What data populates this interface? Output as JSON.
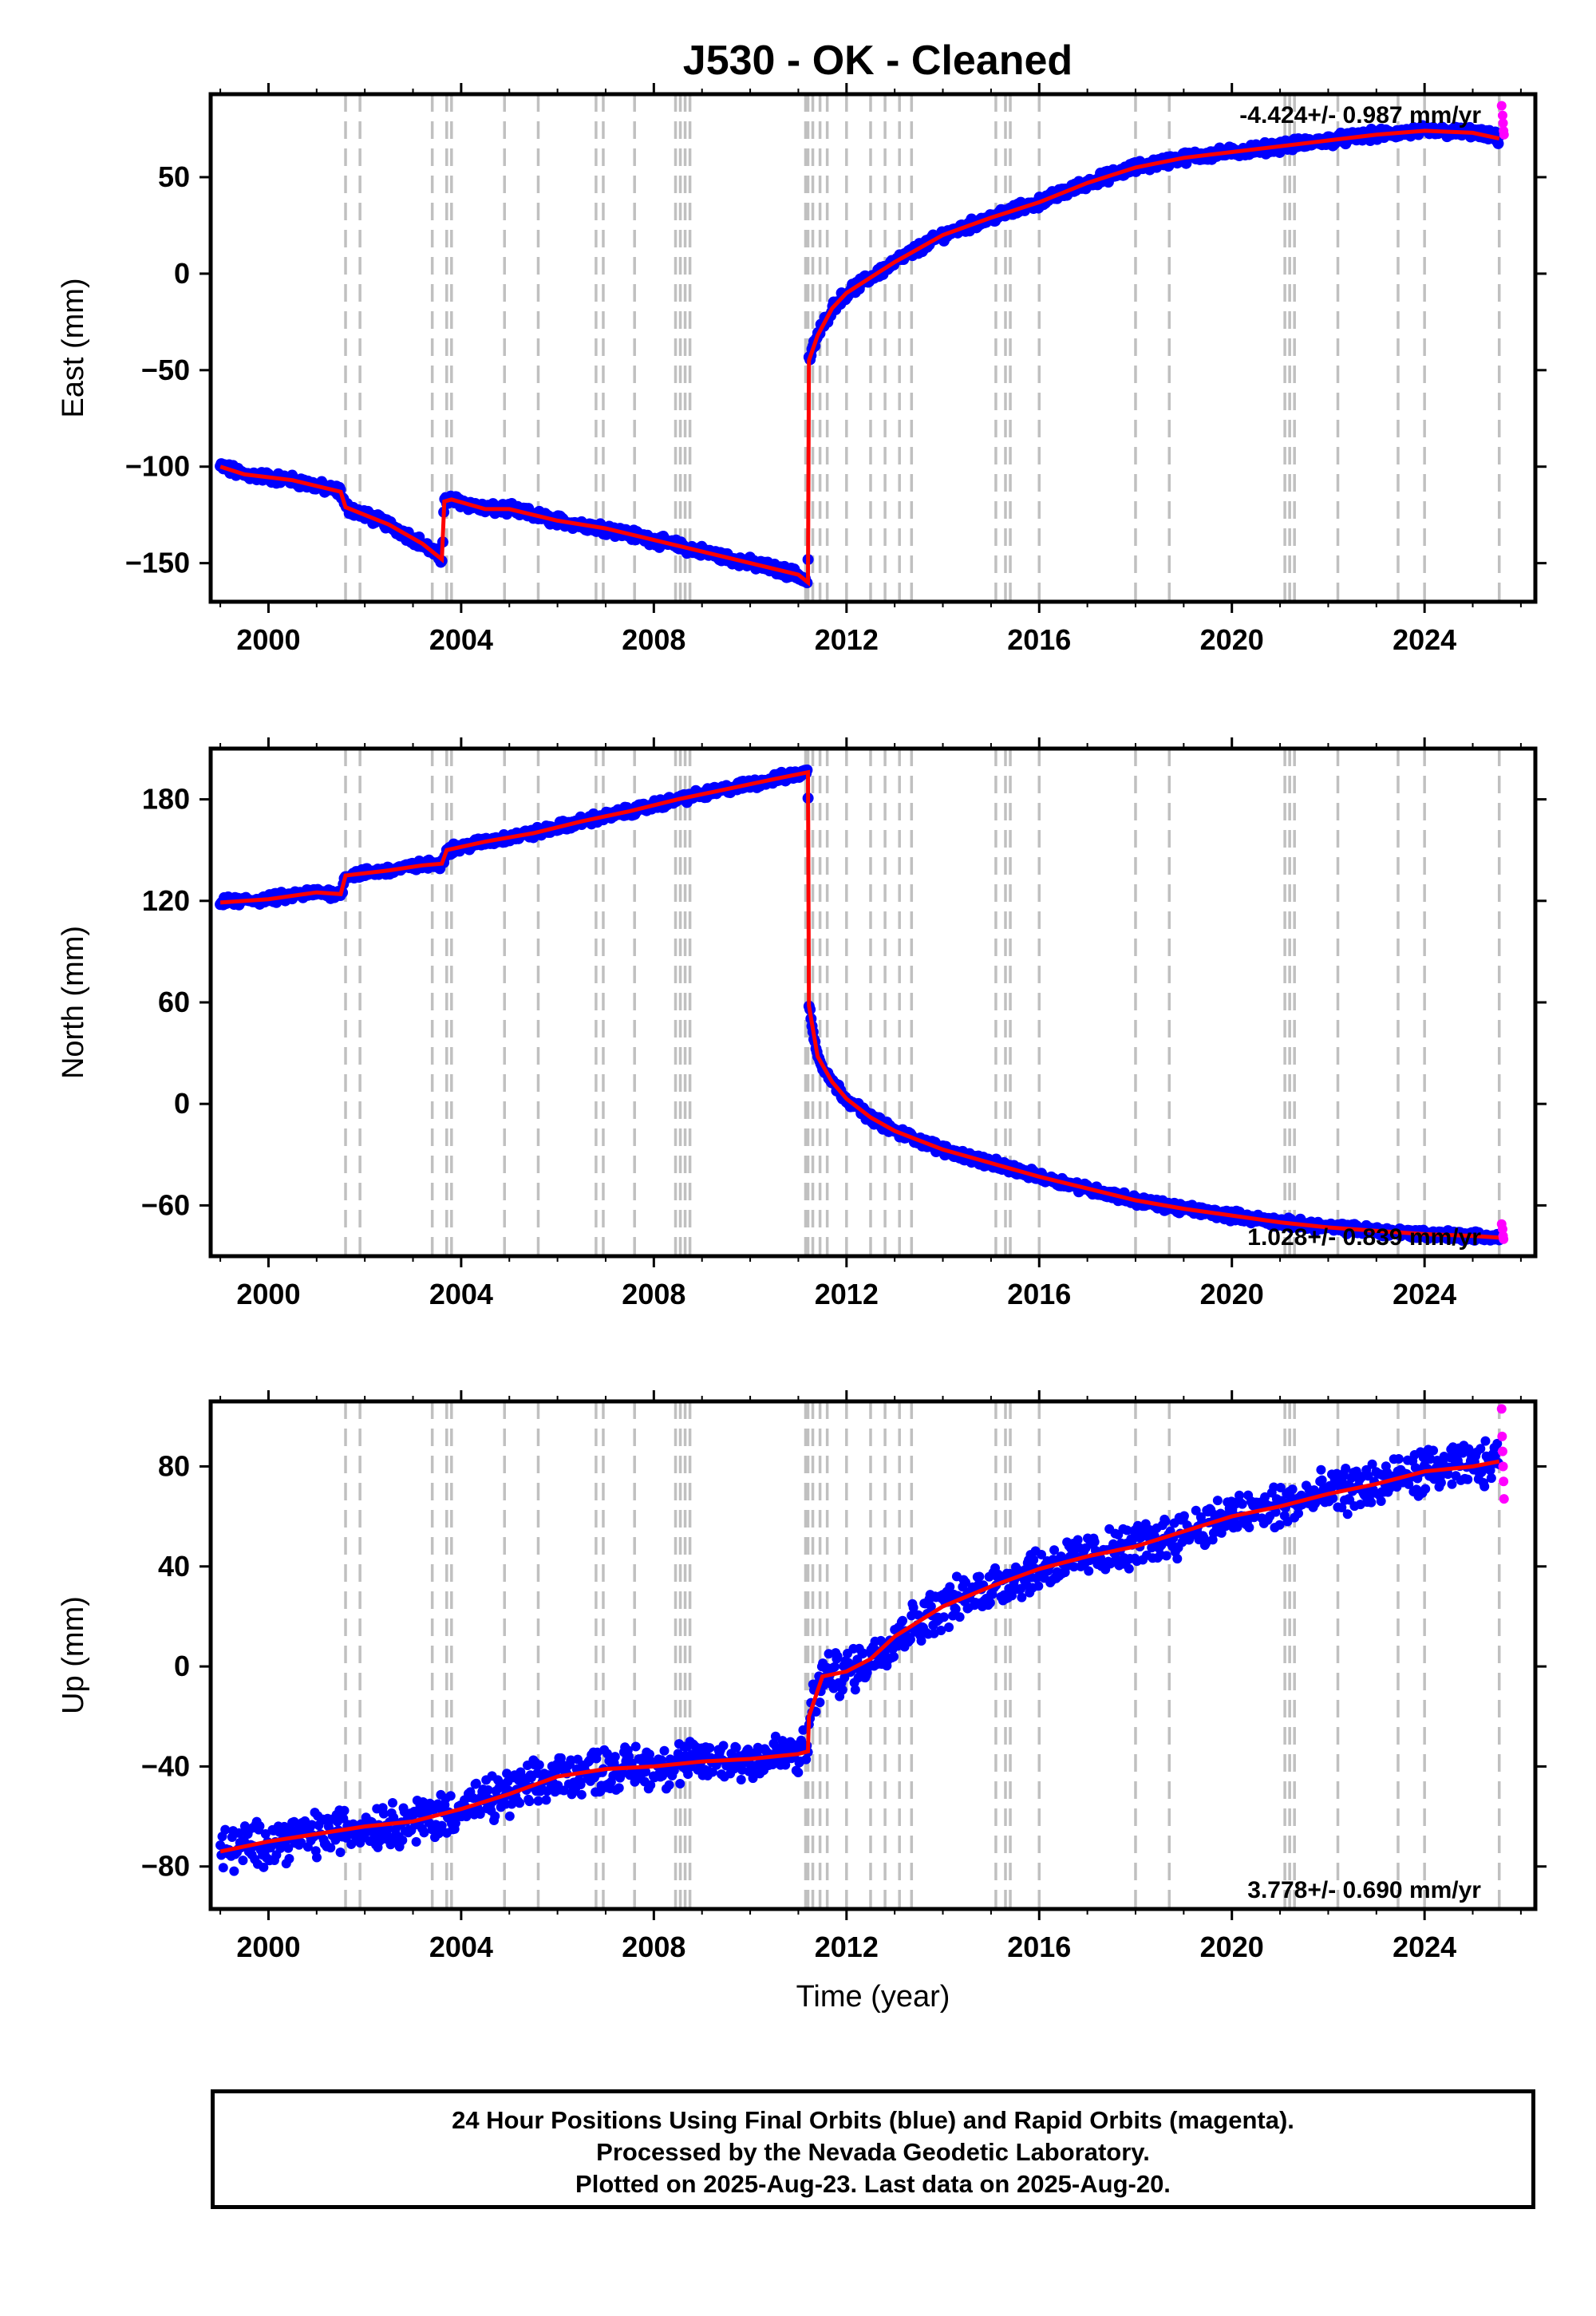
{
  "page_title": "J530  - OK - Cleaned",
  "x_axis_label": "Time (year)",
  "footer": {
    "line1": "24 Hour Positions Using Final Orbits (blue) and Rapid Orbits (magenta).",
    "line2": "Processed by the Nevada Geodetic Laboratory.",
    "line3": "Plotted on 2025-Aug-23. Last data on 2025-Aug-20."
  },
  "colors": {
    "final_orbits": "#0000ff",
    "rapid_orbits": "#ff00ff",
    "model": "#ff0000",
    "event_lines": "#c0c0c0"
  },
  "event_years": [
    2001.6,
    2001.9,
    2003.4,
    2003.7,
    2003.8,
    2004.9,
    2005.6,
    2006.8,
    2006.95,
    2007.6,
    2008.45,
    2008.55,
    2008.65,
    2008.75,
    2011.15,
    2011.2,
    2011.3,
    2011.45,
    2011.6,
    2012.0,
    2012.5,
    2012.8,
    2013.1,
    2013.35,
    2015.1,
    2015.3,
    2015.4,
    2016.0,
    2018.0,
    2018.7,
    2021.1,
    2021.2,
    2021.3,
    2022.2,
    2023.45,
    2024.0,
    2025.55
  ],
  "chart_data": [
    {
      "type": "scatter",
      "ylabel": "East (mm)",
      "rate_label": "-4.424+/- 0.987 mm/yr",
      "xlim": [
        1998.8,
        2026.3
      ],
      "ylim": [
        -170,
        93
      ],
      "xticks": [
        2000,
        2004,
        2008,
        2012,
        2016,
        2020,
        2024
      ],
      "yticks": [
        50,
        0,
        -50,
        -100,
        -150
      ],
      "grid": false,
      "series": [
        {
          "x": [
            1999.0,
            1999.5,
            2000.5,
            2001.5,
            2001.6,
            2002.5,
            2003.2,
            2003.6,
            2003.65,
            2003.8,
            2004.5,
            2005.0,
            2006.0,
            2007.0,
            2008.0,
            2009.0,
            2010.0,
            2011.0,
            2011.2,
            2011.22,
            2011.4,
            2011.7,
            2012.0,
            2012.5,
            2013.0,
            2014.0,
            2015.0,
            2016.0,
            2017.0,
            2018.0,
            2019.0,
            2020.0,
            2021.0,
            2022.0,
            2023.0,
            2024.0,
            2025.0,
            2025.55
          ],
          "y": [
            -100,
            -104,
            -107,
            -113,
            -121,
            -130,
            -140,
            -148,
            -118,
            -117,
            -122,
            -122,
            -128,
            -132,
            -138,
            -144,
            -150,
            -156,
            -160,
            -45,
            -32,
            -18,
            -10,
            -2,
            6,
            20,
            29,
            37,
            47,
            55,
            60,
            63,
            66,
            69,
            72,
            74,
            73,
            70
          ]
        }
      ],
      "rapid_points": [
        {
          "x": 2025.6,
          "y": 87
        },
        {
          "x": 2025.62,
          "y": 82
        },
        {
          "x": 2025.63,
          "y": 78
        },
        {
          "x": 2025.64,
          "y": 74
        },
        {
          "x": 2025.65,
          "y": 72
        }
      ]
    },
    {
      "type": "scatter",
      "ylabel": "North (mm)",
      "rate_label": "1.028+/- 0.839 mm/yr",
      "xlim": [
        1998.8,
        2026.3
      ],
      "ylim": [
        -90,
        210
      ],
      "xticks": [
        2000,
        2004,
        2008,
        2012,
        2016,
        2020,
        2024
      ],
      "yticks": [
        180,
        120,
        60,
        0,
        -60
      ],
      "grid": false,
      "series": [
        {
          "x": [
            1999.0,
            2000.0,
            2001.0,
            2001.5,
            2001.6,
            2002.5,
            2003.2,
            2003.6,
            2003.7,
            2004.5,
            2005.5,
            2006.5,
            2007.5,
            2008.5,
            2009.5,
            2010.5,
            2011.2,
            2011.22,
            2011.4,
            2011.7,
            2012.0,
            2012.5,
            2013.0,
            2014.0,
            2015.0,
            2016.0,
            2017.0,
            2018.0,
            2019.0,
            2020.0,
            2021.0,
            2022.0,
            2023.0,
            2024.0,
            2025.0,
            2025.55
          ],
          "y": [
            119,
            121,
            125,
            124,
            135,
            138,
            141,
            142,
            150,
            155,
            160,
            167,
            173,
            180,
            186,
            192,
            196,
            58,
            28,
            13,
            3,
            -8,
            -16,
            -27,
            -35,
            -43,
            -50,
            -57,
            -62,
            -66,
            -70,
            -73,
            -75,
            -77,
            -78,
            -79
          ]
        }
      ],
      "rapid_points": [
        {
          "x": 2025.6,
          "y": -71
        },
        {
          "x": 2025.62,
          "y": -74
        },
        {
          "x": 2025.63,
          "y": -78
        },
        {
          "x": 2025.64,
          "y": -80
        }
      ]
    },
    {
      "type": "scatter",
      "ylabel": "Up (mm)",
      "rate_label": "3.778+/- 0.690 mm/yr",
      "xlim": [
        1998.8,
        2026.3
      ],
      "ylim": [
        -97,
        106
      ],
      "xticks": [
        2000,
        2004,
        2008,
        2012,
        2016,
        2020,
        2024
      ],
      "yticks": [
        80,
        40,
        0,
        -40,
        -80
      ],
      "grid": false,
      "series": [
        {
          "x": [
            1999.0,
            2000.0,
            2001.0,
            2002.0,
            2003.0,
            2004.0,
            2005.0,
            2006.0,
            2007.0,
            2008.0,
            2009.0,
            2010.0,
            2011.0,
            2011.2,
            2011.22,
            2011.5,
            2012.0,
            2012.5,
            2013.0,
            2014.0,
            2015.0,
            2016.0,
            2017.0,
            2018.0,
            2019.0,
            2020.0,
            2021.0,
            2022.0,
            2023.0,
            2024.0,
            2025.0,
            2025.55
          ],
          "y": [
            -74,
            -70,
            -67,
            -64,
            -62,
            -57,
            -51,
            -44,
            -41,
            -40,
            -38,
            -37,
            -35,
            -34,
            -20,
            -4,
            -2,
            3,
            12,
            24,
            32,
            39,
            44,
            48,
            54,
            60,
            64,
            69,
            73,
            78,
            80,
            82
          ]
        }
      ],
      "rapid_points": [
        {
          "x": 2025.6,
          "y": 103
        },
        {
          "x": 2025.61,
          "y": 92
        },
        {
          "x": 2025.62,
          "y": 86
        },
        {
          "x": 2025.63,
          "y": 80
        },
        {
          "x": 2025.64,
          "y": 74
        },
        {
          "x": 2025.65,
          "y": 67
        }
      ]
    }
  ]
}
